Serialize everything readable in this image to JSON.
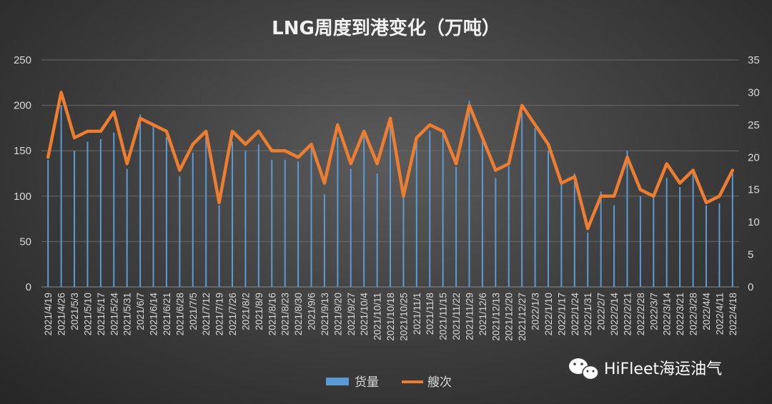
{
  "chart_data": {
    "type": "bar+line",
    "title": "LNG周度到港变化（万吨）",
    "categories": [
      "2021/4/19",
      "2021/4/26",
      "2021/5/3",
      "2021/5/10",
      "2021/5/17",
      "2021/5/24",
      "2021/5/31",
      "2021/6/7",
      "2021/6/14",
      "2021/6/21",
      "2021/6/28",
      "2021/7/5",
      "2021/7/12",
      "2021/7/19",
      "2021/7/26",
      "2021/8/2",
      "2021/8/9",
      "2021/8/16",
      "2021/8/23",
      "2021/8/30",
      "2021/9/6",
      "2021/9/13",
      "2021/9/20",
      "2021/9/27",
      "2021/10/4",
      "2021/10/11",
      "2021/10/18",
      "2021/10/25",
      "2021/11/1",
      "2021/11/8",
      "2021/11/15",
      "2021/11/22",
      "2021/11/29",
      "2021/12/6",
      "2021/12/13",
      "2021/12/20",
      "2021/12/27",
      "2022/1/3",
      "2022/1/10",
      "2022/1/17",
      "2022/1/24",
      "2022/1/31",
      "2022/2/7",
      "2022/2/14",
      "2022/2/21",
      "2022/2/28",
      "2022/3/7",
      "2022/3/14",
      "2022/3/21",
      "2022/3/28",
      "2022/4/4",
      "2022/4/11",
      "2022/4/18"
    ],
    "series": [
      {
        "name": "货量",
        "type": "bar",
        "axis": "left",
        "color": "#5b9bd5",
        "values": [
          140,
          200,
          150,
          160,
          163,
          170,
          130,
          190,
          178,
          165,
          122,
          148,
          165,
          90,
          160,
          150,
          157,
          140,
          140,
          138,
          155,
          102,
          165,
          130,
          170,
          125,
          184,
          100,
          160,
          172,
          168,
          132,
          205,
          160,
          120,
          133,
          192,
          175,
          150,
          113,
          125,
          60,
          105,
          90,
          150,
          100,
          100,
          120,
          110,
          125,
          90,
          92,
          125
        ]
      },
      {
        "name": "艘次",
        "type": "line",
        "axis": "right",
        "color": "#ed7d31",
        "values": [
          20,
          30,
          23,
          24,
          24,
          27,
          19,
          26,
          25,
          24,
          18,
          22,
          24,
          13,
          24,
          22,
          24,
          21,
          21,
          20,
          22,
          16,
          25,
          19,
          24,
          19,
          26,
          14,
          23,
          25,
          24,
          19,
          28,
          23,
          18,
          19,
          28,
          25,
          22,
          16,
          17,
          9,
          14,
          14,
          20,
          15,
          14,
          19,
          16,
          18,
          13,
          14,
          18
        ]
      }
    ],
    "ylim_left": [
      0,
      250
    ],
    "ylim_right": [
      0,
      35
    ],
    "yticks_left": [
      0,
      50,
      100,
      150,
      200,
      250
    ],
    "yticks_right": [
      0,
      5,
      10,
      15,
      20,
      25,
      30,
      35
    ],
    "legend": "bottom"
  },
  "watermark": {
    "text": "HiFleet海运油气",
    "icon": "wechat-icon"
  }
}
